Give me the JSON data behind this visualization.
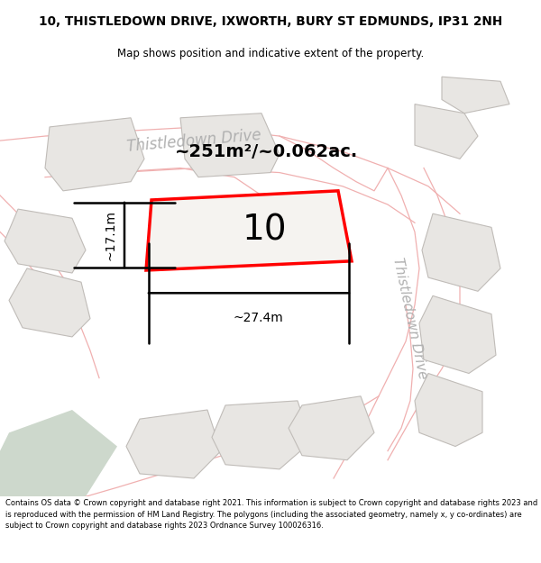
{
  "title_line1": "10, THISTLEDOWN DRIVE, IXWORTH, BURY ST EDMUNDS, IP31 2NH",
  "title_line2": "Map shows position and indicative extent of the property.",
  "area_text": "~251m²/~0.062ac.",
  "house_number": "10",
  "dim_width": "~27.4m",
  "dim_height": "~17.1m",
  "road_name_top": "Thistledown Drive",
  "road_name_right": "Thistledown Drive",
  "footer_text": "Contains OS data © Crown copyright and database right 2021. This information is subject to Crown copyright and database rights 2023 and is reproduced with the permission of HM Land Registry. The polygons (including the associated geometry, namely x, y co-ordinates) are subject to Crown copyright and database rights 2023 Ordnance Survey 100026316.",
  "map_bg": "#ffffff",
  "road_line_color": "#f0b0b0",
  "plot_outline_color": "#d0c0c0",
  "main_plot_fill": "#f5f3f0",
  "main_plot_outline": "#ff0000",
  "main_plot_lw": 2.5,
  "nearby_fill": "#e8e6e3",
  "nearby_outline": "#c0bcb8",
  "nearby_lw": 0.8,
  "dim_color": "#000000",
  "text_color": "#000000",
  "road_text_color": "#b0b0b0",
  "green_color": "#cdd8cc",
  "area_fontsize": 14,
  "num_fontsize": 28
}
